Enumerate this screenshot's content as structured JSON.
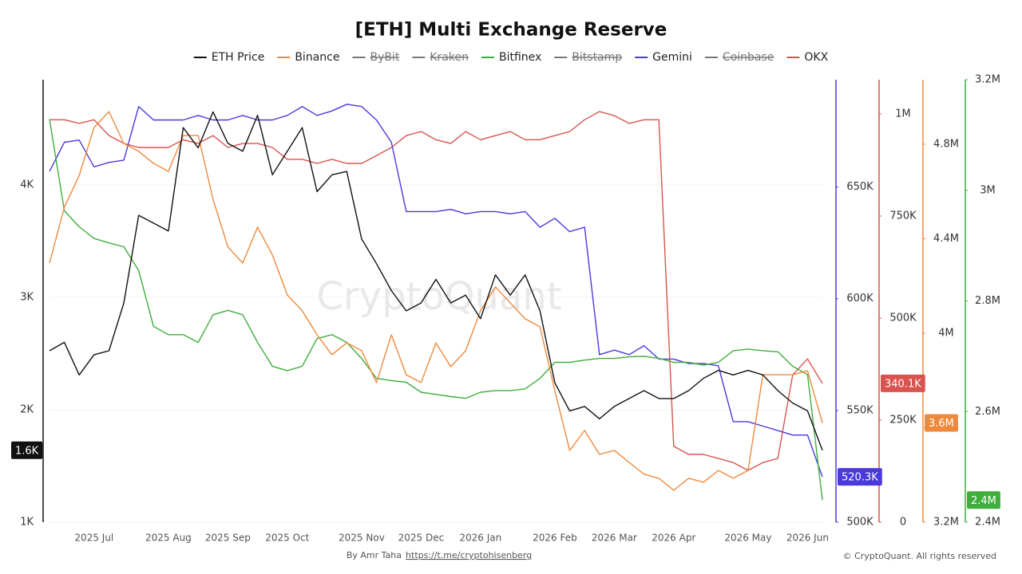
{
  "chart_data": {
    "type": "line",
    "title": "[ETH] Multi Exchange Reserve",
    "watermark": "CryptoQuant",
    "categories": [
      null,
      null,
      null,
      "2025 Jul",
      null,
      null,
      null,
      null,
      "2025 Aug",
      null,
      null,
      null,
      "2025 Sep",
      null,
      null,
      null,
      "2025 Oct",
      null,
      null,
      null,
      null,
      "2025 Nov",
      null,
      null,
      null,
      "2025 Dec",
      null,
      null,
      null,
      "2026 Jan",
      null,
      null,
      null,
      null,
      "2026 Feb",
      null,
      null,
      null,
      "2026 Mar",
      null,
      null,
      null,
      "2026 Apr",
      null,
      null,
      null,
      null,
      "2026 May",
      null,
      null,
      null,
      "2026 Jun",
      null
    ],
    "ylim": [
      1000,
      4936
    ],
    "yticks": [
      {
        "value": 1000,
        "label": "1K"
      },
      {
        "value": 2000,
        "label": "2K"
      },
      {
        "value": 3000,
        "label": "3K"
      },
      {
        "value": 4000,
        "label": "4K"
      }
    ],
    "y2lim": [
      500000,
      698000
    ],
    "y2ticks": [
      {
        "value": 500000,
        "label": "500K"
      },
      {
        "value": 550000,
        "label": "550K"
      },
      {
        "value": 600000,
        "label": "600K"
      },
      {
        "value": 650000,
        "label": "650K"
      }
    ],
    "y3lim": [
      0,
      1084000
    ],
    "y3ticks": [
      0,
      {
        "value": 250000,
        "label": "250K"
      },
      {
        "value": 500000,
        "label": "500K"
      },
      {
        "value": 750000,
        "label": "750K"
      },
      {
        "value": 1000000,
        "label": "1M"
      }
    ],
    "y4lim": [
      3200000,
      5073000
    ],
    "y4ticks": [
      {
        "value": 3200000,
        "label": "3.2M"
      },
      {
        "value": 3600000,
        "label": "3.6M"
      },
      {
        "value": 4000000,
        "label": "4M"
      },
      {
        "value": 4400000,
        "label": "4.4M"
      },
      {
        "value": 4800000,
        "label": "4.8M"
      }
    ],
    "y5lim": [
      2400000,
      3200000
    ],
    "y5ticks": [
      {
        "value": 2400000,
        "label": "2.4M"
      },
      {
        "value": 2600000,
        "label": "2.6M"
      },
      {
        "value": 2800000,
        "label": "2.8M"
      },
      {
        "value": 3000000,
        "label": "3M"
      },
      {
        "value": 3200000,
        "label": "3.2M"
      }
    ],
    "grid": true,
    "series": [
      {
        "name": "ETH Price",
        "color": "#111111",
        "axis": "y",
        "current_label": "1.6K",
        "values": [
          2525,
          2600,
          2310,
          2490,
          2525,
          2950,
          3730,
          3660,
          3590,
          4510,
          4330,
          4650,
          4370,
          4300,
          4620,
          4090,
          4300,
          4510,
          3940,
          4090,
          4120,
          3520,
          3300,
          3060,
          2880,
          2950,
          3160,
          2950,
          3020,
          2810,
          3200,
          3020,
          3200,
          2880,
          2240,
          1990,
          2030,
          1920,
          2030,
          2100,
          2170,
          2100,
          2100,
          2170,
          2280,
          2350,
          2310,
          2350,
          2310,
          2170,
          2060,
          1990,
          1640
        ]
      },
      {
        "name": "Binance",
        "color": "#ef8a3c",
        "axis": "y4",
        "current_label": "3.6M",
        "values": [
          4297000,
          4533000,
          4668000,
          4871000,
          4938000,
          4803000,
          4770000,
          4719000,
          4685000,
          4837000,
          4837000,
          4567000,
          4365000,
          4297000,
          4449000,
          4331000,
          4162000,
          4095000,
          3993000,
          3909000,
          3959000,
          3926000,
          3791000,
          3993000,
          3824000,
          3791000,
          3959000,
          3858000,
          3926000,
          4095000,
          4196000,
          4128000,
          4061000,
          4027000,
          3757000,
          3504000,
          3588000,
          3487000,
          3504000,
          3453000,
          3403000,
          3386000,
          3335000,
          3386000,
          3369000,
          3419000,
          3386000,
          3419000,
          3824000,
          3824000,
          3824000,
          3841000,
          3620000
        ]
      },
      {
        "name": "ByBit",
        "color": "#777777",
        "hidden": true
      },
      {
        "name": "Kraken",
        "color": "#777777",
        "hidden": true
      },
      {
        "name": "Bitfinex",
        "color": "#3fae3c",
        "axis": "y5",
        "current_label": "2.4M",
        "values": [
          3129000,
          2963000,
          2934000,
          2913000,
          2905000,
          2898000,
          2855000,
          2754000,
          2739000,
          2739000,
          2725000,
          2775000,
          2783000,
          2775000,
          2725000,
          2682000,
          2674000,
          2682000,
          2732000,
          2739000,
          2725000,
          2696000,
          2660000,
          2656000,
          2653000,
          2635000,
          2631000,
          2627000,
          2624000,
          2635000,
          2638000,
          2638000,
          2641000,
          2660000,
          2689000,
          2689000,
          2693000,
          2696000,
          2696000,
          2699000,
          2700000,
          2696000,
          2689000,
          2689000,
          2684000,
          2689000,
          2710000,
          2713000,
          2710000,
          2708000,
          2682000,
          2667000,
          2440000
        ]
      },
      {
        "name": "Bitstamp",
        "color": "#777777",
        "hidden": true
      },
      {
        "name": "Gemini",
        "color": "#4a3adb",
        "axis": "y2",
        "current_label": "520.3K",
        "values": [
          657000,
          670000,
          671000,
          659000,
          661000,
          662000,
          686000,
          680000,
          680000,
          680000,
          682000,
          680000,
          680000,
          682000,
          680000,
          680000,
          682000,
          686000,
          682000,
          684000,
          687000,
          686000,
          680000,
          670000,
          639000,
          639000,
          639000,
          640000,
          638000,
          639000,
          639000,
          638000,
          639000,
          632000,
          636000,
          630000,
          632000,
          575000,
          577000,
          575000,
          579000,
          573000,
          573000,
          571000,
          571000,
          570000,
          545000,
          545000,
          543000,
          541000,
          539000,
          539000,
          520300
        ]
      },
      {
        "name": "Coinbase",
        "color": "#777777",
        "hidden": true
      },
      {
        "name": "OKX",
        "color": "#d9534f",
        "axis": "y3",
        "current_label": "340.1K",
        "values": [
          986000,
          986000,
          977000,
          986000,
          947000,
          928000,
          918000,
          918000,
          918000,
          937000,
          928000,
          947000,
          918000,
          928000,
          928000,
          918000,
          889000,
          889000,
          879000,
          889000,
          879000,
          879000,
          898000,
          918000,
          947000,
          957000,
          937000,
          928000,
          957000,
          937000,
          947000,
          957000,
          937000,
          937000,
          947000,
          957000,
          986000,
          1006000,
          996000,
          977000,
          986000,
          986000,
          186000,
          166000,
          166000,
          156000,
          146000,
          127000,
          146000,
          156000,
          361000,
          400000,
          340100
        ]
      }
    ]
  },
  "footer": {
    "credit": "By Amr Taha",
    "link": "https://t.me/cryptohisenberg",
    "copyright": "© CryptoQuant. All rights reserved"
  }
}
